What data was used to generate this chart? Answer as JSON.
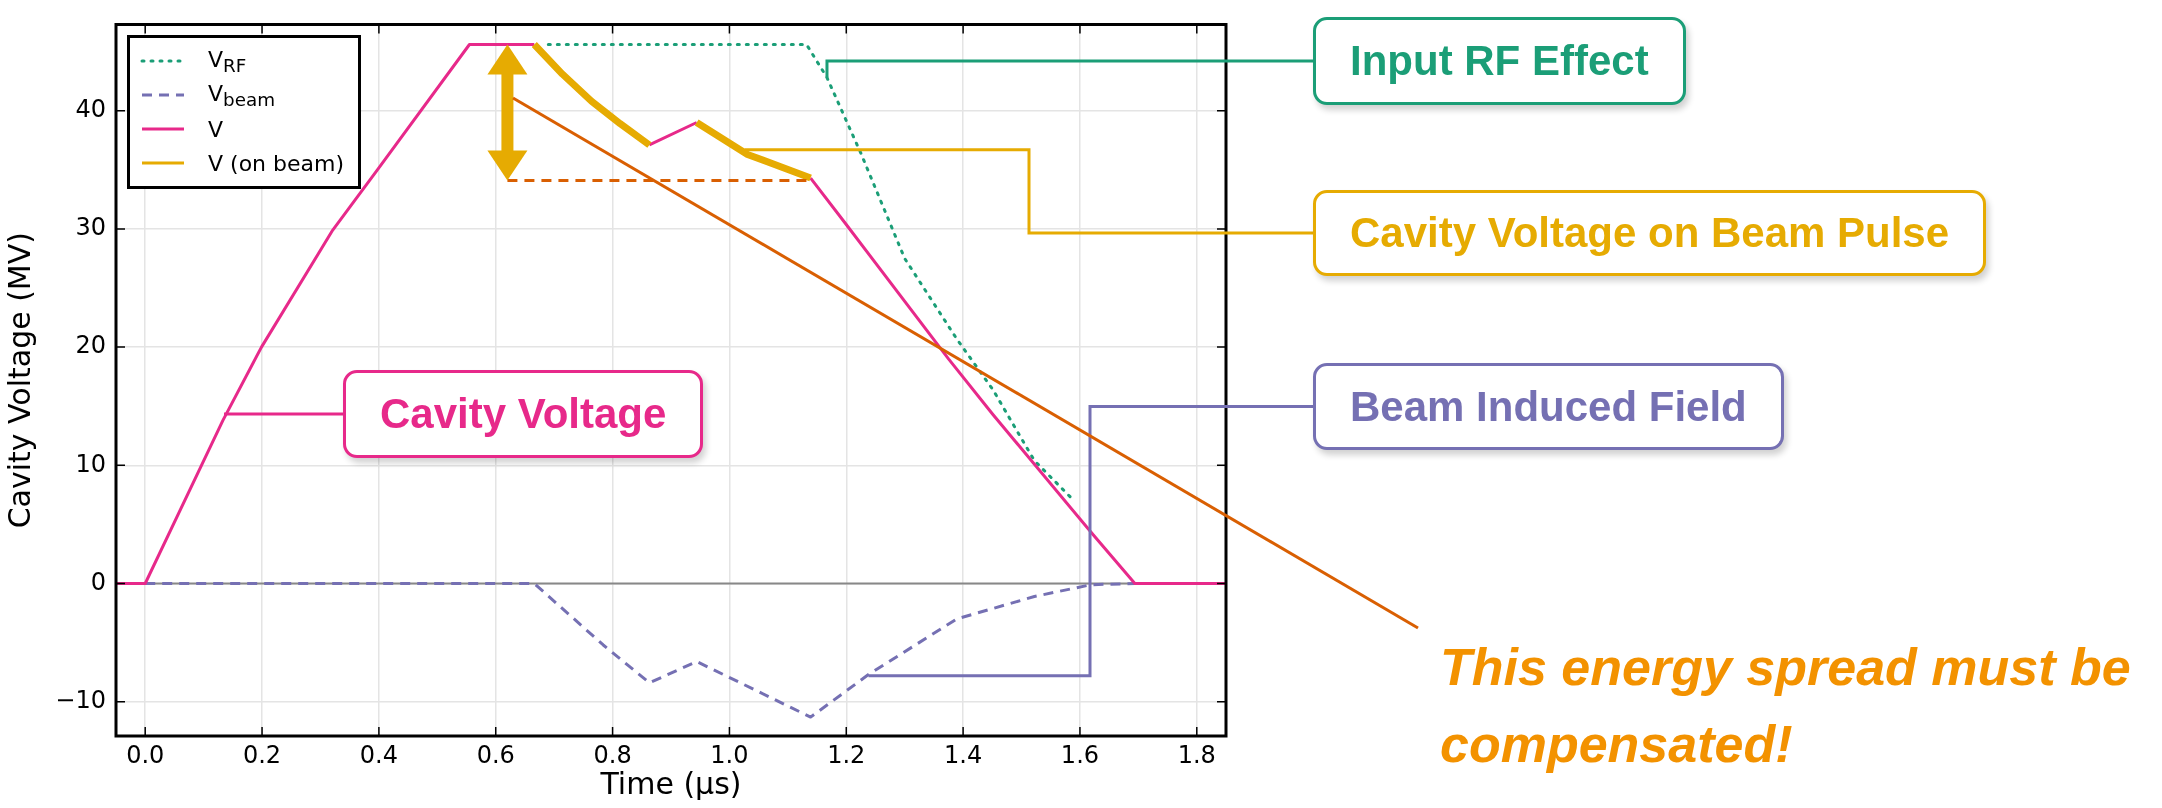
{
  "chart_data": {
    "type": "line",
    "xlabel": "Time (µs)",
    "ylabel": "Cavity Voltage (MV)",
    "xlim": [
      -0.05,
      1.85
    ],
    "ylim": [
      -12.9,
      47.3
    ],
    "xticks": [
      {
        "value": 0,
        "label": "0.0"
      },
      {
        "value": 0.2,
        "label": "0.2"
      },
      {
        "value": 0.4,
        "label": "0.4"
      },
      {
        "value": 0.6,
        "label": "0.6"
      },
      {
        "value": 0.8,
        "label": "0.8"
      },
      {
        "value": 1,
        "label": "1.0"
      },
      {
        "value": 1.2,
        "label": "1.2"
      },
      {
        "value": 1.4,
        "label": "1.4"
      },
      {
        "value": 1.6,
        "label": "1.6"
      },
      {
        "value": 1.8,
        "label": "1.8"
      }
    ],
    "yticks": [
      {
        "value": -10,
        "label": "−10"
      },
      0,
      10,
      20,
      30,
      40
    ],
    "grid": true,
    "legend": "top left",
    "series": [
      {
        "name": "V$_{RF}$",
        "color": "#1b9e77",
        "line_style": "dotted",
        "x": [
          0.69,
          1.132,
          1.167,
          1.225,
          1.3,
          1.389,
          1.451,
          1.522,
          1.59
        ],
        "values": [
          45.6,
          45.6,
          42.8,
          36.4,
          27.5,
          20.7,
          16.4,
          10.4,
          7.0
        ]
      },
      {
        "name": "V$_{beam}$",
        "color": "#7570b3",
        "line_style": "dashed",
        "x": [
          0,
          0.666,
          0.784,
          0.863,
          0.944,
          1.139,
          1.238,
          1.389,
          1.522,
          1.619,
          1.694,
          1.85
        ],
        "values": [
          0,
          0,
          -5.2,
          -8.4,
          -6.6,
          -11.3,
          -7.7,
          -3.0,
          -1.1,
          -0.1,
          0,
          0
        ]
      },
      {
        "name": "V",
        "color": "#e7298a",
        "line_style": "solid",
        "x": [
          -0.05,
          0,
          0.133,
          0.199,
          0.321,
          0.399,
          0.555,
          0.666,
          0.764,
          0.863,
          0.944,
          1.031,
          1.139,
          1.198,
          1.375,
          1.451,
          1.623,
          1.694,
          1.85
        ],
        "values": [
          0,
          0,
          13.8,
          20.0,
          29.9,
          35.1,
          45.6,
          45.6,
          null,
          37.1,
          39.0,
          null,
          34.3,
          30.5,
          19.0,
          14.3,
          4.1,
          0,
          0
        ]
      },
      {
        "name": "V (on beam)",
        "color": "#e6ab02",
        "line_style": "solid",
        "x": [
          0.666,
          0.714,
          0.764,
          0.813,
          0.863,
          0.9,
          0.944,
          1.031,
          1.139
        ],
        "values": [
          45.6,
          43.1,
          40.8,
          38.9,
          37.1,
          null,
          39.0,
          36.3,
          34.3
        ]
      },
      {
        "color": "#d95f02",
        "line_style": "dashed",
        "x": [
          0.62,
          1.14
        ],
        "values": [
          34.1,
          34.1
        ]
      }
    ],
    "ref_lines": [
      {
        "axis": "y",
        "value": 0,
        "color": "#888888"
      }
    ],
    "annotations": [
      {
        "text": "Input RF Effect",
        "x": 1.167,
        "y": 42.8
      },
      {
        "text": "Cavity Voltage on Beam Pulse",
        "x": 1.026,
        "y": 36.7
      },
      "Cavity Voltage",
      {
        "text": "Beam Induced Field",
        "x": 1.238,
        "y": -7.8
      },
      "This energy spread must be compensated!"
    ]
  }
}
